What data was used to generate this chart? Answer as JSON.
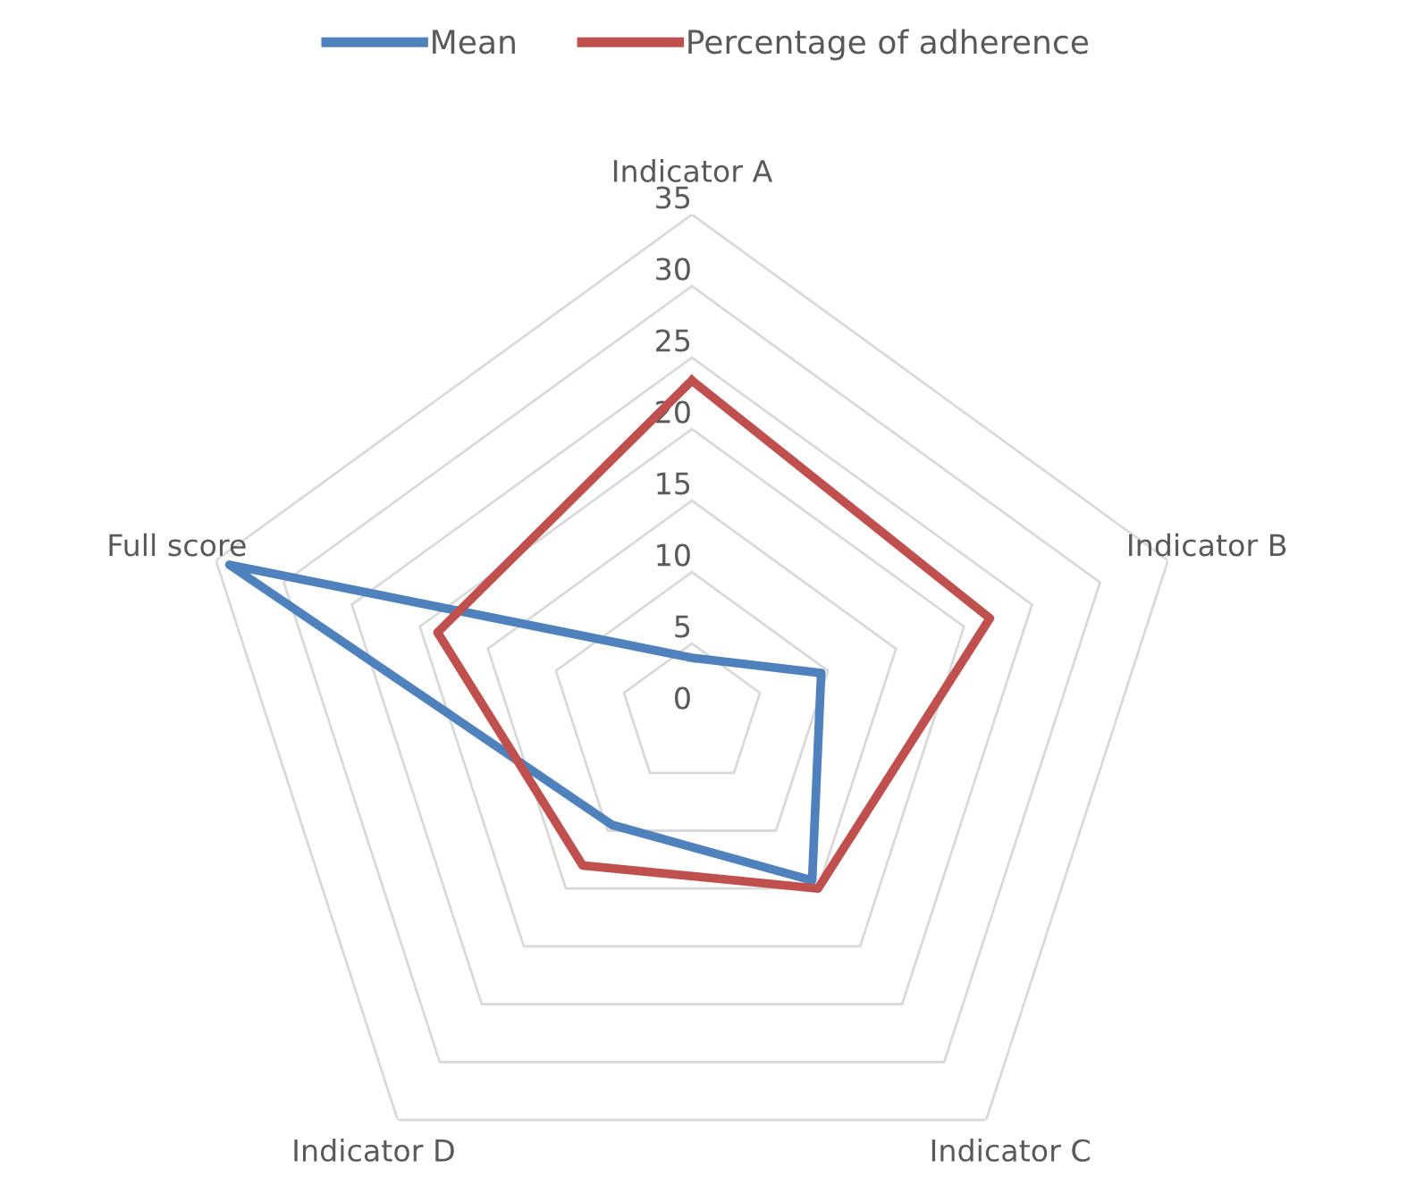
{
  "chart_data": {
    "type": "radar",
    "categories": [
      "Indicator A",
      "Indicator B",
      "Indicator C",
      "Indicator D",
      "Full score"
    ],
    "series": [
      {
        "name": "Mean",
        "color": "#4f81bd",
        "values": [
          4,
          9.5,
          14.3,
          9.5,
          34
        ]
      },
      {
        "name": "Percentage of adherence",
        "color": "#c0504d",
        "values": [
          23.4,
          21.9,
          15,
          13,
          18.7
        ]
      }
    ],
    "ylim": [
      0,
      35
    ],
    "yticks": [
      0,
      5,
      10,
      15,
      20,
      25,
      30,
      35
    ],
    "grid": true,
    "legend": "top",
    "marker": "none",
    "line_style": "solid"
  }
}
